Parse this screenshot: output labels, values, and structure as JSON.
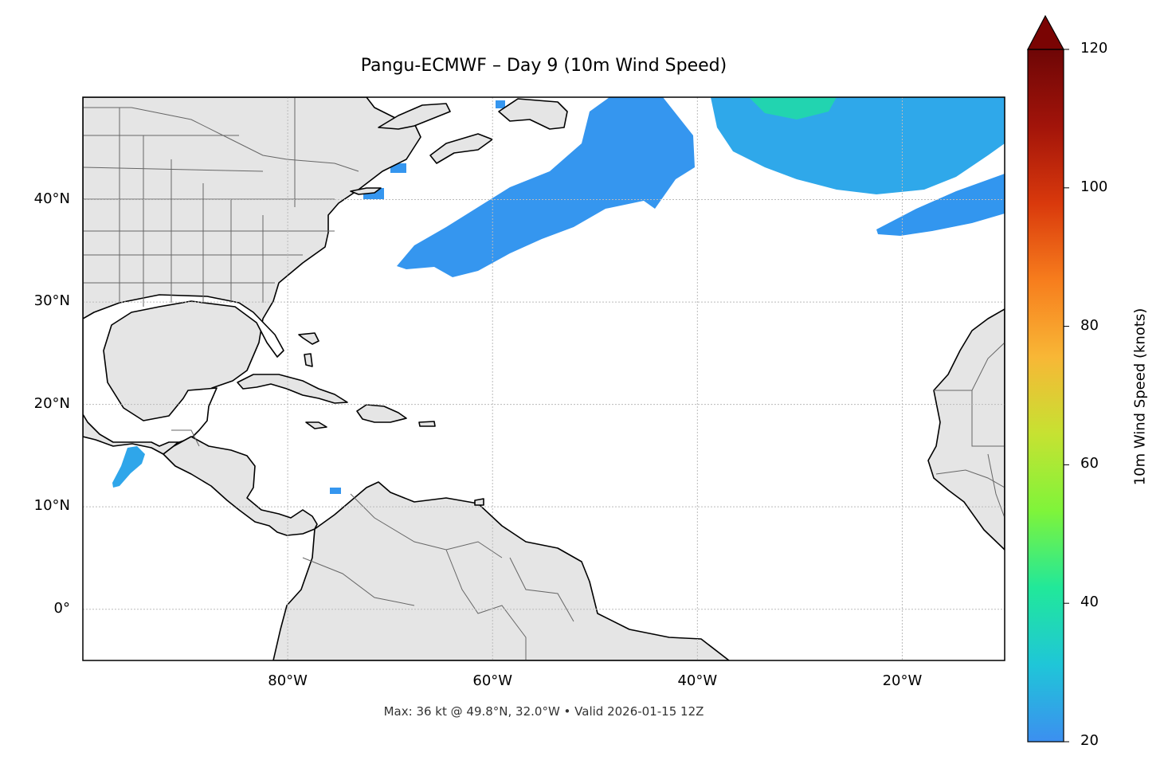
{
  "title": "Pangu-ECMWF – Day 9 (10m Wind Speed)",
  "footer": "Max: 36 kt @ 49.8°N, 32.0°W • Valid 2026-01-15 12Z",
  "map": {
    "extent": {
      "lon_min": -100,
      "lon_max": -10,
      "lat_min": -5,
      "lat_max": 50
    },
    "lat_ticks": [
      {
        "value": 40,
        "label": "40°N"
      },
      {
        "value": 30,
        "label": "30°N"
      },
      {
        "value": 20,
        "label": "20°N"
      },
      {
        "value": 10,
        "label": "10°N"
      },
      {
        "value": 0,
        "label": "0°"
      }
    ],
    "lon_ticks": [
      {
        "value": -80,
        "label": "80°W"
      },
      {
        "value": -60,
        "label": "60°W"
      },
      {
        "value": -40,
        "label": "40°W"
      },
      {
        "value": -20,
        "label": "20°W"
      }
    ],
    "land_color": "#e5e5e5",
    "coast_color": "#000000",
    "border_color": "#666666",
    "grid_color": "#bbbbbb"
  },
  "colorbar": {
    "label": "10m Wind Speed (knots)",
    "min": 20,
    "max": 120,
    "extend": "max",
    "ticks": [
      {
        "value": 20,
        "label": "20"
      },
      {
        "value": 40,
        "label": "40"
      },
      {
        "value": 60,
        "label": "60"
      },
      {
        "value": 80,
        "label": "80"
      },
      {
        "value": 100,
        "label": "100"
      },
      {
        "value": 120,
        "label": "120"
      }
    ],
    "colormap": [
      "#3c8ff0",
      "#1fc6d8",
      "#21e89a",
      "#7ff43a",
      "#c6e232",
      "#f8b736",
      "#f77d1d",
      "#d9390c",
      "#a2140a",
      "#6e0606"
    ],
    "extend_color": "#7a0403"
  },
  "wind_areas": [
    {
      "name": "NW Atlantic jet",
      "color": "#3596ef",
      "max_kt": 26
    },
    {
      "name": "NE Atlantic jet",
      "color": "#2ab8e2",
      "max_kt": 36
    },
    {
      "name": "Iberia streak",
      "color": "#3296ef",
      "max_kt": 25
    },
    {
      "name": "Gulf of Tehuantepec gap wind",
      "color": "#2fa6ea",
      "max_kt": 28
    }
  ]
}
